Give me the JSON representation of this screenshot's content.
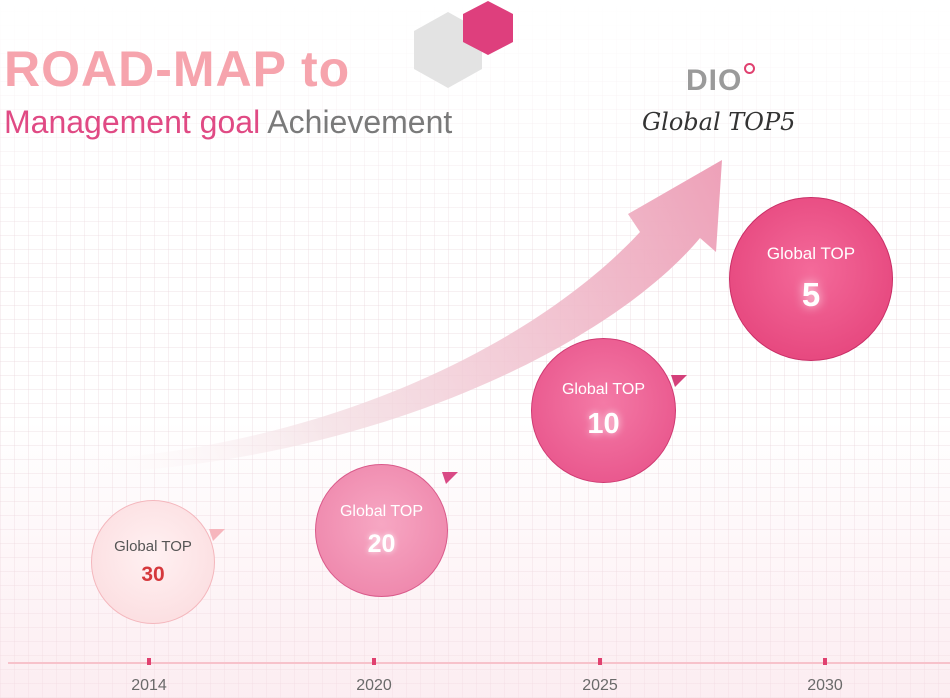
{
  "header": {
    "title_line1": "ROAD-MAP to",
    "title_line2_part1": "Management goal",
    "title_line2_part2": "Achievement"
  },
  "logo": {
    "text": "DIO"
  },
  "goal": {
    "text": "Global TOP5"
  },
  "milestones": [
    {
      "year": "2014",
      "label": "Global TOP",
      "rank": "30"
    },
    {
      "year": "2020",
      "label": "Global TOP",
      "rank": "20"
    },
    {
      "year": "2025",
      "label": "Global TOP",
      "rank": "10"
    },
    {
      "year": "2030",
      "label": "Global TOP",
      "rank": "5"
    }
  ],
  "colors": {
    "accent": "#e04a84",
    "title_pink": "#f6a4ad",
    "circle_30": "#fbd9dc",
    "circle_20": "#ec7fa6",
    "circle_10": "#e64d86",
    "circle_5": "#e23d76",
    "axis": "#f7c2cb"
  },
  "icons": [
    "hexagon-icon",
    "growth-arrow-icon",
    "flag-icon"
  ]
}
